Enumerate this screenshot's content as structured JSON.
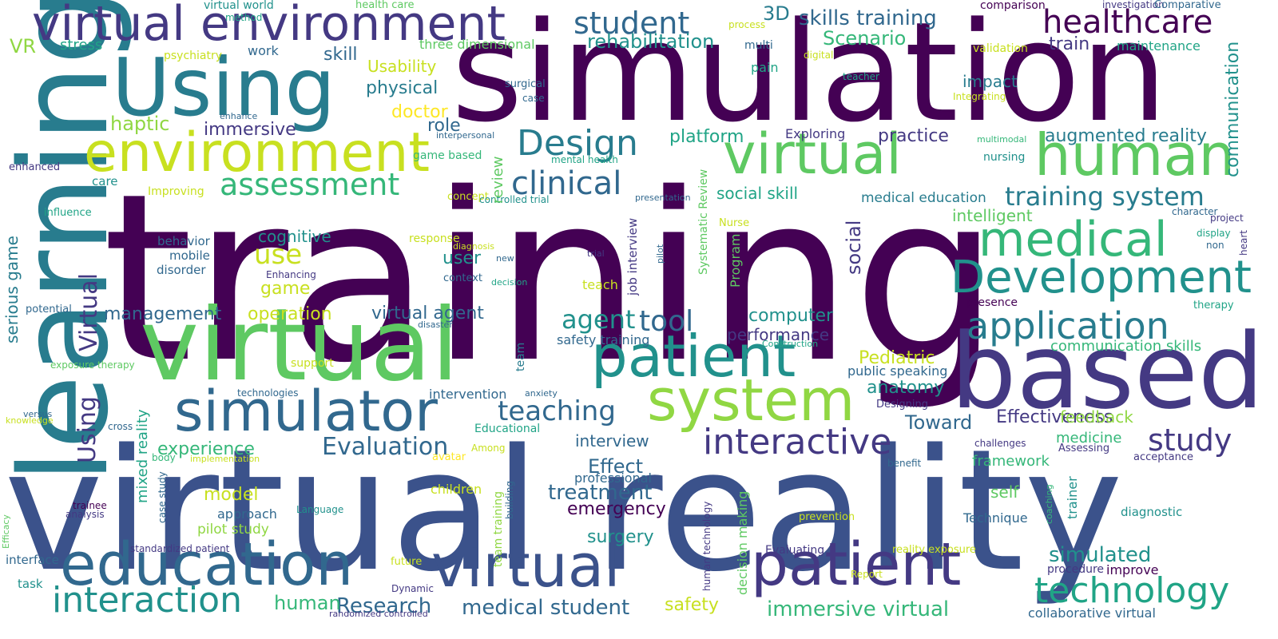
{
  "palette": {
    "dark_purple": "#440154",
    "indigo": "#443983",
    "blue": "#3b528b",
    "steel_blue": "#31688e",
    "teal": "#287c8e",
    "sea": "#21918c",
    "green_teal": "#20a486",
    "green": "#35b779",
    "light_green": "#5ec962",
    "lime": "#90d743",
    "yellow_green": "#c8e020",
    "yellow": "#fde725"
  },
  "words": [
    {
      "id": "w-training",
      "text": "training",
      "color": "#440154"
    },
    {
      "id": "w-virtual-reality",
      "text": "virtual reality",
      "color": "#3b528b"
    },
    {
      "id": "w-simulation",
      "text": "simulation",
      "color": "#440154"
    },
    {
      "id": "w-learning",
      "text": "learning",
      "color": "#287c8e"
    },
    {
      "id": "w-based",
      "text": "based",
      "color": "#443983"
    },
    {
      "id": "w-virtual-big",
      "text": "virtual",
      "color": "#5ec962"
    },
    {
      "id": "w-using-big",
      "text": "Using",
      "color": "#287c8e"
    },
    {
      "id": "w-virtual-environment",
      "text": "virtual environment",
      "color": "#443983"
    },
    {
      "id": "w-environment",
      "text": "environment",
      "color": "#c8e020"
    },
    {
      "id": "w-virtual-human",
      "text": "virtual",
      "color": "#5ec962"
    },
    {
      "id": "w-human",
      "text": "human",
      "color": "#5ec962"
    },
    {
      "id": "w-patient-mid",
      "text": "patient",
      "color": "#21918c"
    },
    {
      "id": "w-system",
      "text": "system",
      "color": "#90d743"
    },
    {
      "id": "w-simulator",
      "text": "simulator",
      "color": "#31688e"
    },
    {
      "id": "w-education",
      "text": "education",
      "color": "#31688e"
    },
    {
      "id": "w-virtual-bottom",
      "text": "virtual",
      "color": "#3b528b"
    },
    {
      "id": "w-patient-bottom",
      "text": "patient",
      "color": "#443983"
    },
    {
      "id": "w-medical",
      "text": "medical",
      "color": "#35b779"
    },
    {
      "id": "w-development",
      "text": "Development",
      "color": "#21918c"
    },
    {
      "id": "w-application",
      "text": "application",
      "color": "#287c8e"
    },
    {
      "id": "w-interaction",
      "text": "interaction",
      "color": "#21918c"
    },
    {
      "id": "w-technology",
      "text": "technology",
      "color": "#20a486"
    },
    {
      "id": "w-interactive",
      "text": "interactive",
      "color": "#443983"
    },
    {
      "id": "w-healthcare",
      "text": "healthcare",
      "color": "#440154"
    },
    {
      "id": "w-student-top",
      "text": "student",
      "color": "#31688e"
    },
    {
      "id": "w-design",
      "text": "Design",
      "color": "#287c8e"
    },
    {
      "id": "w-clinical",
      "text": "clinical",
      "color": "#31688e"
    },
    {
      "id": "w-assessment",
      "text": "assessment",
      "color": "#35b779"
    },
    {
      "id": "w-training-system",
      "text": "training system",
      "color": "#287c8e"
    },
    {
      "id": "w-study",
      "text": "study",
      "color": "#443983"
    },
    {
      "id": "w-teaching",
      "text": "teaching",
      "color": "#31688e"
    },
    {
      "id": "w-evaluation",
      "text": "Evaluation",
      "color": "#31688e"
    },
    {
      "id": "w-use",
      "text": "use",
      "color": "#c8e020"
    },
    {
      "id": "w-tool",
      "text": "tool",
      "color": "#31688e"
    },
    {
      "id": "w-agent",
      "text": "agent",
      "color": "#21918c"
    },
    {
      "id": "w-medical-student",
      "text": "medical student",
      "color": "#31688e"
    },
    {
      "id": "w-immersive-virtual",
      "text": "immersive virtual",
      "color": "#35b779"
    },
    {
      "id": "w-simulated",
      "text": "simulated",
      "color": "#21918c"
    },
    {
      "id": "w-treatment",
      "text": "treatment",
      "color": "#31688e"
    },
    {
      "id": "w-research",
      "text": "Research",
      "color": "#31688e"
    },
    {
      "id": "w-human-small",
      "text": "human",
      "color": "#35b779"
    },
    {
      "id": "w-skills-training",
      "text": "skills training",
      "color": "#31688e"
    },
    {
      "id": "w-rehabilitation",
      "text": "rehabilitation",
      "color": "#21918c"
    },
    {
      "id": "w-scenario",
      "text": "Scenario",
      "color": "#35b779"
    },
    {
      "id": "w-3d",
      "text": "3D",
      "color": "#287c8e"
    },
    {
      "id": "w-train",
      "text": "train",
      "color": "#443983"
    },
    {
      "id": "w-virtual-agent",
      "text": "virtual agent",
      "color": "#31688e"
    },
    {
      "id": "w-management",
      "text": "management",
      "color": "#31688e"
    },
    {
      "id": "w-effectiveness",
      "text": "Effectiveness",
      "color": "#443983"
    },
    {
      "id": "w-toward",
      "text": "Toward",
      "color": "#31688e"
    },
    {
      "id": "w-anatomy",
      "text": "anatomy",
      "color": "#21918c"
    },
    {
      "id": "w-pediatric",
      "text": "Pediatric",
      "color": "#c8e020"
    },
    {
      "id": "w-augmented-reality",
      "text": "augmented reality",
      "color": "#287c8e"
    },
    {
      "id": "w-practice",
      "text": "practice",
      "color": "#443983"
    },
    {
      "id": "w-platform",
      "text": "platform",
      "color": "#20a486"
    },
    {
      "id": "w-social-skill",
      "text": "social skill",
      "color": "#20a486"
    },
    {
      "id": "w-medical-education",
      "text": "medical education",
      "color": "#287c8e"
    },
    {
      "id": "w-intelligent",
      "text": "intelligent",
      "color": "#5ec962"
    },
    {
      "id": "w-impact",
      "text": "impact",
      "color": "#287c8e"
    },
    {
      "id": "w-physical",
      "text": "physical",
      "color": "#287c8e"
    },
    {
      "id": "w-skill",
      "text": "skill",
      "color": "#31688e"
    },
    {
      "id": "w-usability",
      "text": "Usability",
      "color": "#c8e020"
    },
    {
      "id": "w-doctor",
      "text": "doctor",
      "color": "#fde725"
    },
    {
      "id": "w-role",
      "text": "role",
      "color": "#31688e"
    },
    {
      "id": "w-haptic",
      "text": "haptic",
      "color": "#90d743"
    },
    {
      "id": "w-immersive",
      "text": "immersive",
      "color": "#443983"
    },
    {
      "id": "w-cognitive",
      "text": "cognitive",
      "color": "#21918c"
    },
    {
      "id": "w-game",
      "text": "game",
      "color": "#c8e020"
    },
    {
      "id": "w-user",
      "text": "user",
      "color": "#21918c"
    },
    {
      "id": "w-operation",
      "text": "operation",
      "color": "#c8e020"
    },
    {
      "id": "w-computer",
      "text": "computer",
      "color": "#21918c"
    },
    {
      "id": "w-performance",
      "text": "performance",
      "color": "#443983"
    },
    {
      "id": "w-safety-training",
      "text": "safety training",
      "color": "#31688e"
    },
    {
      "id": "w-experience",
      "text": "experience",
      "color": "#35b779"
    },
    {
      "id": "w-effect",
      "text": "Effect",
      "color": "#31688e"
    },
    {
      "id": "w-interview",
      "text": "interview",
      "color": "#31688e"
    },
    {
      "id": "w-emergency",
      "text": "emergency",
      "color": "#440154"
    },
    {
      "id": "w-model",
      "text": "model",
      "color": "#c8e020"
    },
    {
      "id": "w-surgery",
      "text": "surgery",
      "color": "#21918c"
    },
    {
      "id": "w-safety",
      "text": "safety",
      "color": "#c8e020"
    },
    {
      "id": "w-feedback",
      "text": "feedback",
      "color": "#90d743"
    },
    {
      "id": "w-medicine",
      "text": "medicine",
      "color": "#35b779"
    },
    {
      "id": "w-framework",
      "text": "framework",
      "color": "#35b779"
    },
    {
      "id": "w-self",
      "text": "self",
      "color": "#5ec962"
    },
    {
      "id": "w-communication-skills",
      "text": "communication skills",
      "color": "#35b779"
    },
    {
      "id": "w-public-speaking",
      "text": "public speaking",
      "color": "#31688e"
    },
    {
      "id": "w-professional",
      "text": "professional",
      "color": "#31688e"
    },
    {
      "id": "w-approach",
      "text": "approach",
      "color": "#31688e"
    },
    {
      "id": "w-pilot-study",
      "text": "pilot study",
      "color": "#90d743"
    },
    {
      "id": "w-intervention",
      "text": "intervention",
      "color": "#31688e"
    },
    {
      "id": "w-stress",
      "text": "stress",
      "color": "#20a486"
    },
    {
      "id": "w-vr",
      "text": "VR",
      "color": "#90d743"
    },
    {
      "id": "w-work",
      "text": "work",
      "color": "#31688e"
    },
    {
      "id": "w-psychiatry",
      "text": "psychiatry",
      "color": "#c8e020"
    },
    {
      "id": "w-three-dimensional",
      "text": "three dimensional",
      "color": "#5ec962"
    },
    {
      "id": "w-multi",
      "text": "multi",
      "color": "#31688e"
    },
    {
      "id": "w-pain",
      "text": "pain",
      "color": "#20a486"
    },
    {
      "id": "w-maintenance",
      "text": "maintenance",
      "color": "#20a486"
    },
    {
      "id": "w-validation",
      "text": "validation",
      "color": "#c8e020"
    },
    {
      "id": "w-exploring",
      "text": "Exploring",
      "color": "#443983"
    },
    {
      "id": "w-nursing",
      "text": "nursing",
      "color": "#21918c"
    },
    {
      "id": "w-behavior",
      "text": "behavior",
      "color": "#31688e"
    },
    {
      "id": "w-mobile",
      "text": "mobile",
      "color": "#31688e"
    },
    {
      "id": "w-disorder",
      "text": "disorder",
      "color": "#31688e"
    },
    {
      "id": "w-care",
      "text": "care",
      "color": "#21918c"
    },
    {
      "id": "w-enhanced",
      "text": "enhanced",
      "color": "#443983"
    },
    {
      "id": "w-improving",
      "text": "Improving",
      "color": "#c8e020"
    },
    {
      "id": "w-influence",
      "text": "influence",
      "color": "#20a486"
    },
    {
      "id": "w-potential",
      "text": "potential",
      "color": "#31688e"
    },
    {
      "id": "w-exposure-therapy",
      "text": "exposure therapy",
      "color": "#5ec962"
    },
    {
      "id": "w-technologies",
      "text": "technologies",
      "color": "#31688e"
    },
    {
      "id": "w-knowledge",
      "text": "knowledge",
      "color": "#c8e020"
    },
    {
      "id": "w-versus",
      "text": "versus",
      "color": "#31688e"
    },
    {
      "id": "w-cross",
      "text": "cross",
      "color": "#31688e"
    },
    {
      "id": "w-body",
      "text": "body",
      "color": "#35b779"
    },
    {
      "id": "w-implementation",
      "text": "implementation",
      "color": "#c8e020"
    },
    {
      "id": "w-trainee",
      "text": "trainee",
      "color": "#440154"
    },
    {
      "id": "w-analysis",
      "text": "analysis",
      "color": "#443983"
    },
    {
      "id": "w-language",
      "text": "Language",
      "color": "#21918c"
    },
    {
      "id": "w-standardized-patient",
      "text": "standardized patient",
      "color": "#443983"
    },
    {
      "id": "w-interface",
      "text": "interface",
      "color": "#31688e"
    },
    {
      "id": "w-task",
      "text": "task",
      "color": "#21918c"
    },
    {
      "id": "w-future",
      "text": "future",
      "color": "#c8e020"
    },
    {
      "id": "w-dynamic",
      "text": "Dynamic",
      "color": "#443983"
    },
    {
      "id": "w-randomized-controlled",
      "text": "randomized controlled",
      "color": "#443983"
    },
    {
      "id": "w-report",
      "text": "Report",
      "color": "#c8e020"
    },
    {
      "id": "w-collaborative-virtual",
      "text": "collaborative virtual",
      "color": "#31688e"
    },
    {
      "id": "w-evaluating",
      "text": "Evaluating",
      "color": "#443983"
    },
    {
      "id": "w-reality-exposure",
      "text": "reality exposure",
      "color": "#c8e020"
    },
    {
      "id": "w-procedure",
      "text": "procedure",
      "color": "#443983"
    },
    {
      "id": "w-improve",
      "text": "improve",
      "color": "#440154"
    },
    {
      "id": "w-technique",
      "text": "Technique",
      "color": "#31688e"
    },
    {
      "id": "w-prevention",
      "text": "prevention",
      "color": "#c8e020"
    },
    {
      "id": "w-diagnostic",
      "text": "diagnostic",
      "color": "#21918c"
    },
    {
      "id": "w-acceptance",
      "text": "acceptance",
      "color": "#443983"
    },
    {
      "id": "w-assessing",
      "text": "Assessing",
      "color": "#443983"
    },
    {
      "id": "w-challenges",
      "text": "challenges",
      "color": "#443983"
    },
    {
      "id": "w-benefit",
      "text": "benefit",
      "color": "#31688e"
    },
    {
      "id": "w-designing",
      "text": "Designing",
      "color": "#443983"
    },
    {
      "id": "w-presence",
      "text": "presence",
      "color": "#440154"
    },
    {
      "id": "w-therapy",
      "text": "therapy",
      "color": "#20a486"
    },
    {
      "id": "w-display",
      "text": "display",
      "color": "#20a486"
    },
    {
      "id": "w-non",
      "text": "non",
      "color": "#31688e"
    },
    {
      "id": "w-project",
      "text": "project",
      "color": "#443983"
    },
    {
      "id": "w-character",
      "text": "character",
      "color": "#31688e"
    },
    {
      "id": "w-multimodal",
      "text": "multimodal",
      "color": "#35b779"
    },
    {
      "id": "w-teacher",
      "text": "teacher",
      "color": "#20a486"
    },
    {
      "id": "w-integrating",
      "text": "Integrating",
      "color": "#c8e020"
    },
    {
      "id": "w-digital",
      "text": "digital",
      "color": "#c8e020"
    },
    {
      "id": "w-process",
      "text": "process",
      "color": "#c8e020"
    },
    {
      "id": "w-comparison",
      "text": "comparison",
      "color": "#440154"
    },
    {
      "id": "w-investigation",
      "text": "investigation",
      "color": "#443983"
    },
    {
      "id": "w-comparative",
      "text": "Comparative",
      "color": "#31688e"
    },
    {
      "id": "w-virtual-world",
      "text": "virtual world",
      "color": "#21918c"
    },
    {
      "id": "w-method",
      "text": "method",
      "color": "#20a486"
    },
    {
      "id": "w-health-care",
      "text": "health care",
      "color": "#5ec962"
    },
    {
      "id": "w-surgical",
      "text": "surgical",
      "color": "#31688e"
    },
    {
      "id": "w-case",
      "text": "case",
      "color": "#31688e"
    },
    {
      "id": "w-enhance",
      "text": "enhance",
      "color": "#31688e"
    },
    {
      "id": "w-interpersonal",
      "text": "interpersonal",
      "color": "#31688e"
    },
    {
      "id": "w-game-based",
      "text": "game based",
      "color": "#35b779"
    },
    {
      "id": "w-mental-health",
      "text": "mental health",
      "color": "#20a486"
    },
    {
      "id": "w-concept",
      "text": "concept",
      "color": "#c8e020"
    },
    {
      "id": "w-controlled-trial",
      "text": "controlled trial",
      "color": "#21918c"
    },
    {
      "id": "w-presentation",
      "text": "presentation",
      "color": "#31688e"
    },
    {
      "id": "w-response",
      "text": "response",
      "color": "#c8e020"
    },
    {
      "id": "w-diagnosis",
      "text": "diagnosis",
      "color": "#c8e020"
    },
    {
      "id": "w-new",
      "text": "new",
      "color": "#31688e"
    },
    {
      "id": "w-enhancing",
      "text": "Enhancing",
      "color": "#443983"
    },
    {
      "id": "w-context",
      "text": "context",
      "color": "#31688e"
    },
    {
      "id": "w-decision",
      "text": "decision",
      "color": "#20a486"
    },
    {
      "id": "w-trial",
      "text": "trial",
      "color": "#443983"
    },
    {
      "id": "w-nurse",
      "text": "Nurse",
      "color": "#c8e020"
    },
    {
      "id": "w-teach",
      "text": "teach",
      "color": "#c8e020"
    },
    {
      "id": "w-disaster",
      "text": "disaster",
      "color": "#31688e"
    },
    {
      "id": "w-support",
      "text": "support",
      "color": "#c8e020"
    },
    {
      "id": "w-construction",
      "text": "Construction",
      "color": "#20a486"
    },
    {
      "id": "w-anxiety",
      "text": "anxiety",
      "color": "#31688e"
    },
    {
      "id": "w-educational",
      "text": "Educational",
      "color": "#20a486"
    },
    {
      "id": "w-among",
      "text": "Among",
      "color": "#c8e020"
    },
    {
      "id": "w-avatar",
      "text": "avatar",
      "color": "#fde725"
    },
    {
      "id": "w-children",
      "text": "children",
      "color": "#c8e020"
    },
    {
      "id": "w-serious-game",
      "text": "serious game",
      "color": "#287c8e"
    },
    {
      "id": "w-using-vertical",
      "text": "Using",
      "color": "#443983"
    },
    {
      "id": "w-virtual-vertical",
      "text": "Virtual",
      "color": "#443983"
    },
    {
      "id": "w-mixed-reality",
      "text": "mixed reality",
      "color": "#20a486"
    },
    {
      "id": "w-review",
      "text": "review",
      "color": "#5ec962"
    },
    {
      "id": "w-team",
      "text": "team",
      "color": "#287c8e"
    },
    {
      "id": "w-case-study",
      "text": "case study",
      "color": "#31688e"
    },
    {
      "id": "w-team-training",
      "text": "team training",
      "color": "#90d743"
    },
    {
      "id": "w-building",
      "text": "building",
      "color": "#31688e"
    },
    {
      "id": "w-job-interview",
      "text": "job interview",
      "color": "#443983"
    },
    {
      "id": "w-pilot",
      "text": "pilot",
      "color": "#31688e"
    },
    {
      "id": "w-systematic-review",
      "text": "Systematic Review",
      "color": "#5ec962"
    },
    {
      "id": "w-program",
      "text": "Program",
      "color": "#5ec962"
    },
    {
      "id": "w-social",
      "text": "social",
      "color": "#443983"
    },
    {
      "id": "w-decision-making",
      "text": "decision making",
      "color": "#5ec962"
    },
    {
      "id": "w-human-technology",
      "text": "human technology",
      "color": "#443983"
    },
    {
      "id": "w-communication",
      "text": "communication",
      "color": "#21918c"
    },
    {
      "id": "w-trainer",
      "text": "trainer",
      "color": "#21918c"
    },
    {
      "id": "w-coaching",
      "text": "coaching",
      "color": "#35b779"
    },
    {
      "id": "w-heart",
      "text": "heart",
      "color": "#443983"
    },
    {
      "id": "w-efficacy",
      "text": "Efficacy",
      "color": "#5ec962"
    }
  ]
}
